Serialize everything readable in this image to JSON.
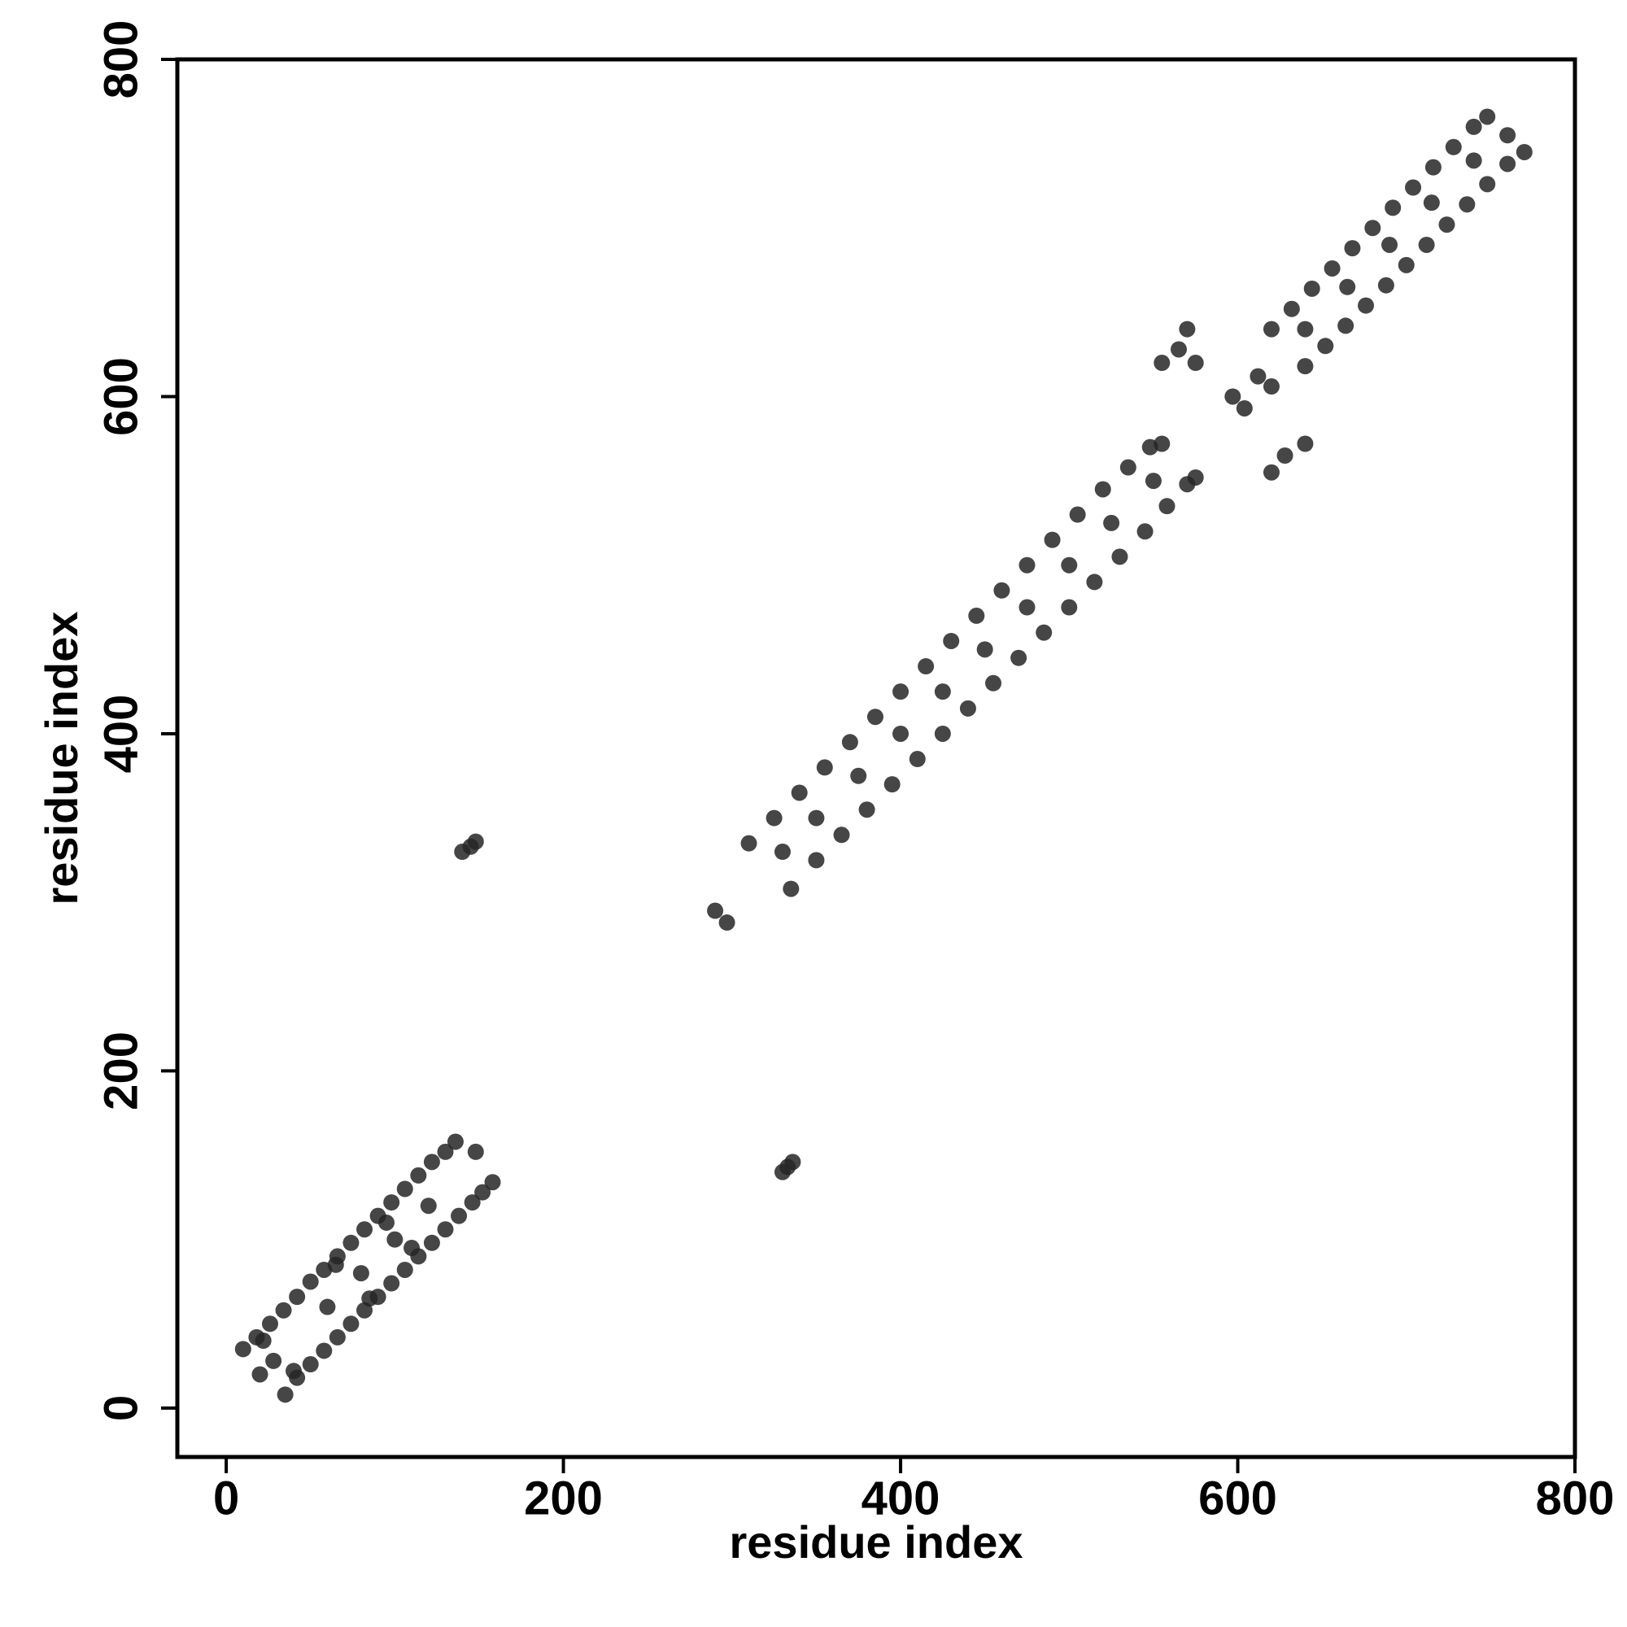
{
  "chart_data": {
    "type": "scatter",
    "x_label": "residue index",
    "y_label": "residue index",
    "xlim": [
      -29,
      800
    ],
    "ylim": [
      -29,
      800
    ],
    "xticks": [
      0,
      200,
      400,
      600,
      800
    ],
    "yticks": [
      0,
      200,
      400,
      600,
      800
    ],
    "color": "#262626",
    "x": [
      10,
      18,
      26,
      34,
      42,
      50,
      58,
      66,
      74,
      82,
      90,
      98,
      106,
      114,
      122,
      130,
      136,
      35,
      42,
      50,
      58,
      66,
      74,
      82,
      90,
      98,
      106,
      114,
      122,
      130,
      138,
      146,
      152,
      158,
      20,
      28,
      40,
      22,
      60,
      80,
      100,
      120,
      85,
      65,
      110,
      95,
      148,
      310,
      325,
      340,
      355,
      370,
      385,
      400,
      415,
      430,
      445,
      460,
      475,
      490,
      505,
      520,
      535,
      548,
      555,
      335,
      350,
      365,
      380,
      395,
      410,
      425,
      440,
      455,
      470,
      485,
      500,
      515,
      530,
      545,
      558,
      570,
      575,
      330,
      350,
      375,
      400,
      425,
      450,
      475,
      500,
      525,
      550,
      620,
      632,
      644,
      656,
      668,
      688,
      680,
      692,
      704,
      716,
      728,
      740,
      748,
      640,
      652,
      664,
      676,
      700,
      712,
      724,
      736,
      748,
      760,
      770,
      640,
      665,
      690,
      715,
      740,
      760,
      140,
      145,
      148,
      330,
      333,
      336,
      290,
      297,
      555,
      565,
      570,
      575,
      620,
      628,
      640,
      597,
      604,
      612,
      620
    ],
    "values": [
      35,
      42,
      50,
      58,
      66,
      75,
      82,
      90,
      98,
      106,
      114,
      122,
      130,
      138,
      146,
      152,
      158,
      8,
      18,
      26,
      34,
      42,
      50,
      58,
      66,
      74,
      82,
      90,
      98,
      106,
      114,
      122,
      128,
      134,
      20,
      28,
      22,
      40,
      60,
      80,
      100,
      120,
      65,
      85,
      95,
      110,
      152,
      335,
      350,
      365,
      380,
      395,
      410,
      425,
      440,
      455,
      470,
      485,
      500,
      515,
      530,
      545,
      558,
      570,
      572,
      308,
      325,
      340,
      355,
      370,
      385,
      400,
      415,
      430,
      445,
      460,
      475,
      490,
      505,
      520,
      535,
      548,
      552,
      330,
      350,
      375,
      400,
      425,
      450,
      475,
      500,
      525,
      550,
      640,
      652,
      664,
      676,
      688,
      666,
      700,
      712,
      724,
      736,
      748,
      760,
      766,
      618,
      630,
      642,
      654,
      678,
      690,
      702,
      714,
      726,
      738,
      745,
      640,
      665,
      690,
      715,
      740,
      755,
      330,
      333,
      336,
      140,
      143,
      146,
      295,
      288,
      620,
      628,
      640,
      620,
      555,
      565,
      572,
      600,
      593,
      612,
      606
    ]
  }
}
